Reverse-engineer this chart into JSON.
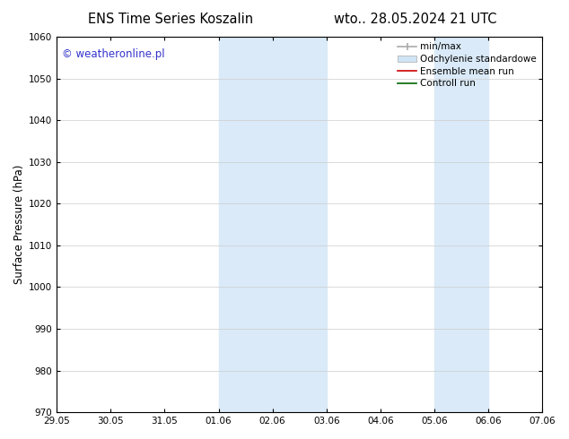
{
  "title_left": "ENS Time Series Koszalin",
  "title_right": "wto.. 28.05.2024 21 UTC",
  "ylabel": "Surface Pressure (hPa)",
  "ylim": [
    970,
    1060
  ],
  "yticks": [
    970,
    980,
    990,
    1000,
    1010,
    1020,
    1030,
    1040,
    1050,
    1060
  ],
  "xtick_labels": [
    "29.05",
    "30.05",
    "31.05",
    "01.06",
    "02.06",
    "03.06",
    "04.06",
    "05.06",
    "06.06",
    "07.06"
  ],
  "xtick_positions": [
    0,
    1,
    2,
    3,
    4,
    5,
    6,
    7,
    8,
    9
  ],
  "shaded_regions": [
    {
      "xmin": 3,
      "xmax": 5,
      "color": "#daeaf8"
    },
    {
      "xmin": 7,
      "xmax": 8,
      "color": "#daeaf8"
    }
  ],
  "watermark": "© weatheronline.pl",
  "watermark_color": "#3333cc",
  "background_color": "#ffffff",
  "plot_bg_color": "#ffffff",
  "grid_color": "#cccccc",
  "legend_entries": [
    {
      "label": "min/max",
      "color": "#aaaaaa",
      "lw": 1.2
    },
    {
      "label": "Odchylenie standardowe",
      "color": "#d0e4f4",
      "lw": 6
    },
    {
      "label": "Ensemble mean run",
      "color": "#cc0000",
      "lw": 1.2
    },
    {
      "label": "Controll run",
      "color": "#006600",
      "lw": 1.2
    }
  ],
  "figsize": [
    6.34,
    4.9
  ],
  "dpi": 100,
  "font_size_ticks": 7.5,
  "font_size_ylabel": 8.5,
  "font_size_title": 10.5,
  "font_size_legend": 7.5,
  "font_size_watermark": 8.5
}
